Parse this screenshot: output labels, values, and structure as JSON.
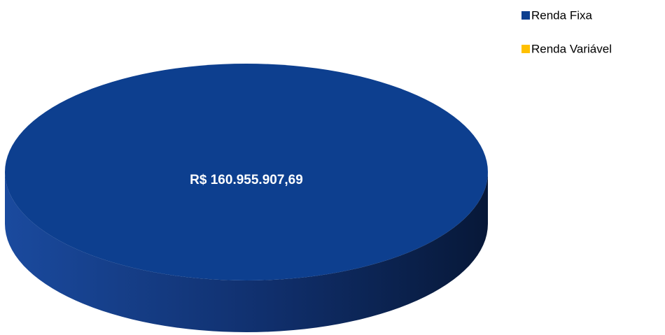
{
  "chart_data": {
    "type": "pie",
    "categories": [
      "Renda Fixa",
      "Renda Variável"
    ],
    "values": [
      160955907.69,
      0
    ],
    "value_labels": [
      "R$ 160.955.907,69",
      null
    ],
    "colors": [
      "#0d3f8f",
      "#ffc000"
    ],
    "legend": "top-right"
  }
}
